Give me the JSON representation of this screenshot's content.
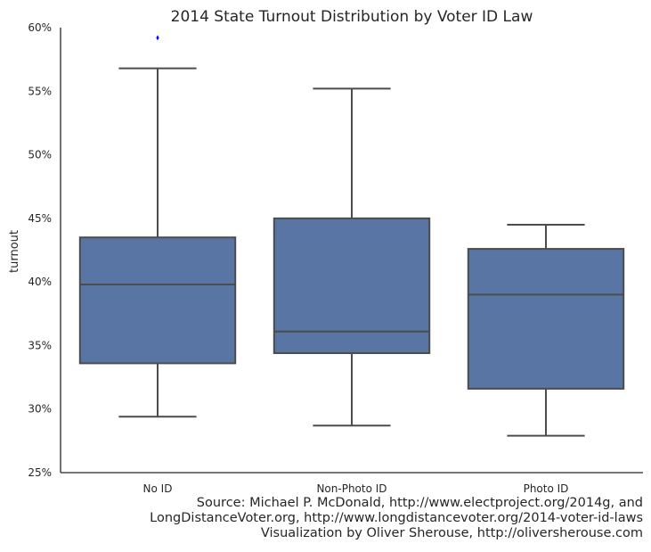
{
  "chart_data": {
    "type": "box",
    "title": "2014 State Turnout Distribution by Voter ID Law",
    "xlabel": "",
    "ylabel": "turnout",
    "ylim": [
      0.25,
      0.6
    ],
    "yticks": [
      0.25,
      0.3,
      0.35,
      0.4,
      0.45,
      0.5,
      0.55,
      0.6
    ],
    "ytick_labels": [
      "25%",
      "30%",
      "35%",
      "40%",
      "45%",
      "50%",
      "55%",
      "60%"
    ],
    "grid": false,
    "categories": [
      "No ID",
      "Non-Photo ID",
      "Photo ID"
    ],
    "boxes": [
      {
        "whisker_low": 0.294,
        "q1": 0.336,
        "median": 0.398,
        "q3": 0.435,
        "whisker_high": 0.568,
        "outliers": [
          0.592
        ]
      },
      {
        "whisker_low": 0.287,
        "q1": 0.344,
        "median": 0.361,
        "q3": 0.45,
        "whisker_high": 0.552,
        "outliers": []
      },
      {
        "whisker_low": 0.279,
        "q1": 0.316,
        "median": 0.39,
        "q3": 0.426,
        "whisker_high": 0.445,
        "outliers": []
      }
    ],
    "box_color": "#5975a4",
    "line_color": "#4c4c4c",
    "outlier_color": "#0000ff"
  },
  "source": {
    "line1": "Source: Michael P. McDonald, http://www.electproject.org/2014g, and",
    "line2": "LongDistanceVoter.org, http://www.longdistancevoter.org/2014-voter-id-laws",
    "line3": "Visualization by Oliver Sherouse, http://oliversherouse.com"
  }
}
